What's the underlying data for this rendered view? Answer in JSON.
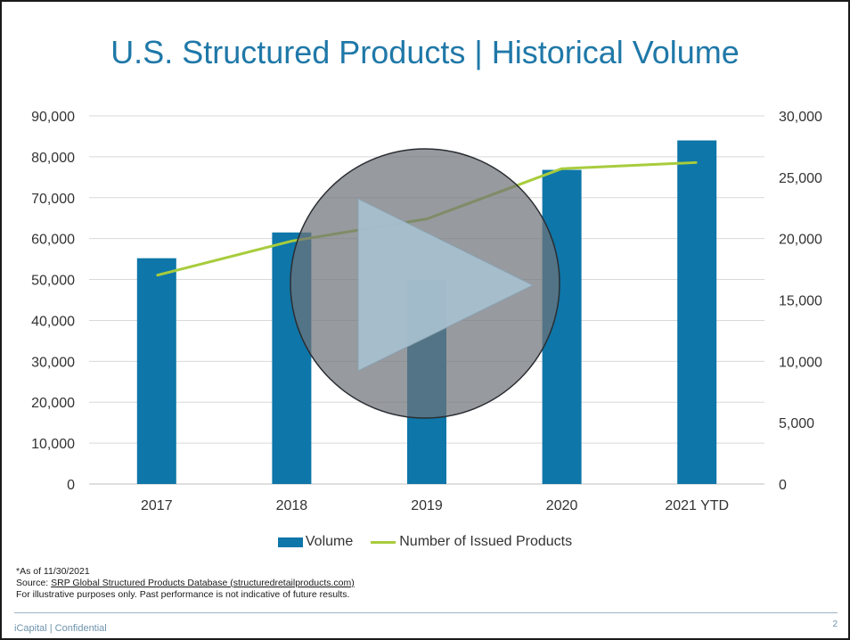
{
  "title": "U.S. Structured Products | Historical Volume",
  "legend": {
    "volume": "Volume",
    "products": "Number of Issued Products"
  },
  "footnotes": {
    "asof": "*As of 11/30/2021",
    "source_prefix": "Source: ",
    "source_link": "SRP Global Structured Products Database (structuredretailproducts.com)",
    "disclaimer": "For illustrative purposes only. Past performance is not indicative of future results."
  },
  "footer": {
    "brand": "iCapital | Confidential",
    "page": "2"
  },
  "colors": {
    "bar": "#0e76a8",
    "line": "#a8cc3c",
    "title": "#1f78a8"
  },
  "play_icon": "play-icon",
  "chart_data": {
    "type": "bar",
    "categories": [
      "2017",
      "2018",
      "2019",
      "2020",
      "2021 YTD"
    ],
    "series": [
      {
        "name": "Volume",
        "type": "bar",
        "axis": "left",
        "values": [
          55200,
          61500,
          50000,
          76800,
          84000
        ]
      },
      {
        "name": "Number of Issued Products",
        "type": "line",
        "axis": "right",
        "values": [
          17000,
          19800,
          21600,
          25700,
          26200
        ]
      }
    ],
    "ylim_left": [
      0,
      90000
    ],
    "yticks_left": [
      "90,000",
      "80,000",
      "70,000",
      "60,000",
      "50,000",
      "40,000",
      "30,000",
      "20,000",
      "10,000",
      "0"
    ],
    "ylim_right": [
      0,
      30000
    ],
    "yticks_right": [
      "30,000",
      "25,000",
      "20,000",
      "15,000",
      "10,000",
      "5,000",
      "0"
    ],
    "grid": true,
    "legend_position": "bottom"
  }
}
